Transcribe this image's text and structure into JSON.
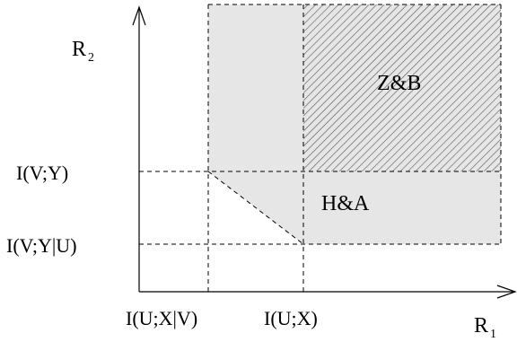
{
  "axes": {
    "y_label": "R",
    "y_sub": "2",
    "x_label": "R",
    "x_sub": "1"
  },
  "y_ticks": [
    "I(V;Y)",
    "I(V;Y|U)"
  ],
  "x_ticks": [
    "I(U;X|V)",
    "I(U;X)"
  ],
  "regions": {
    "zb": "Z&B",
    "ha": "H&A"
  },
  "colors": {
    "region_fill": "#e6e6e6",
    "hatch": "#555555",
    "line": "#000000"
  }
}
